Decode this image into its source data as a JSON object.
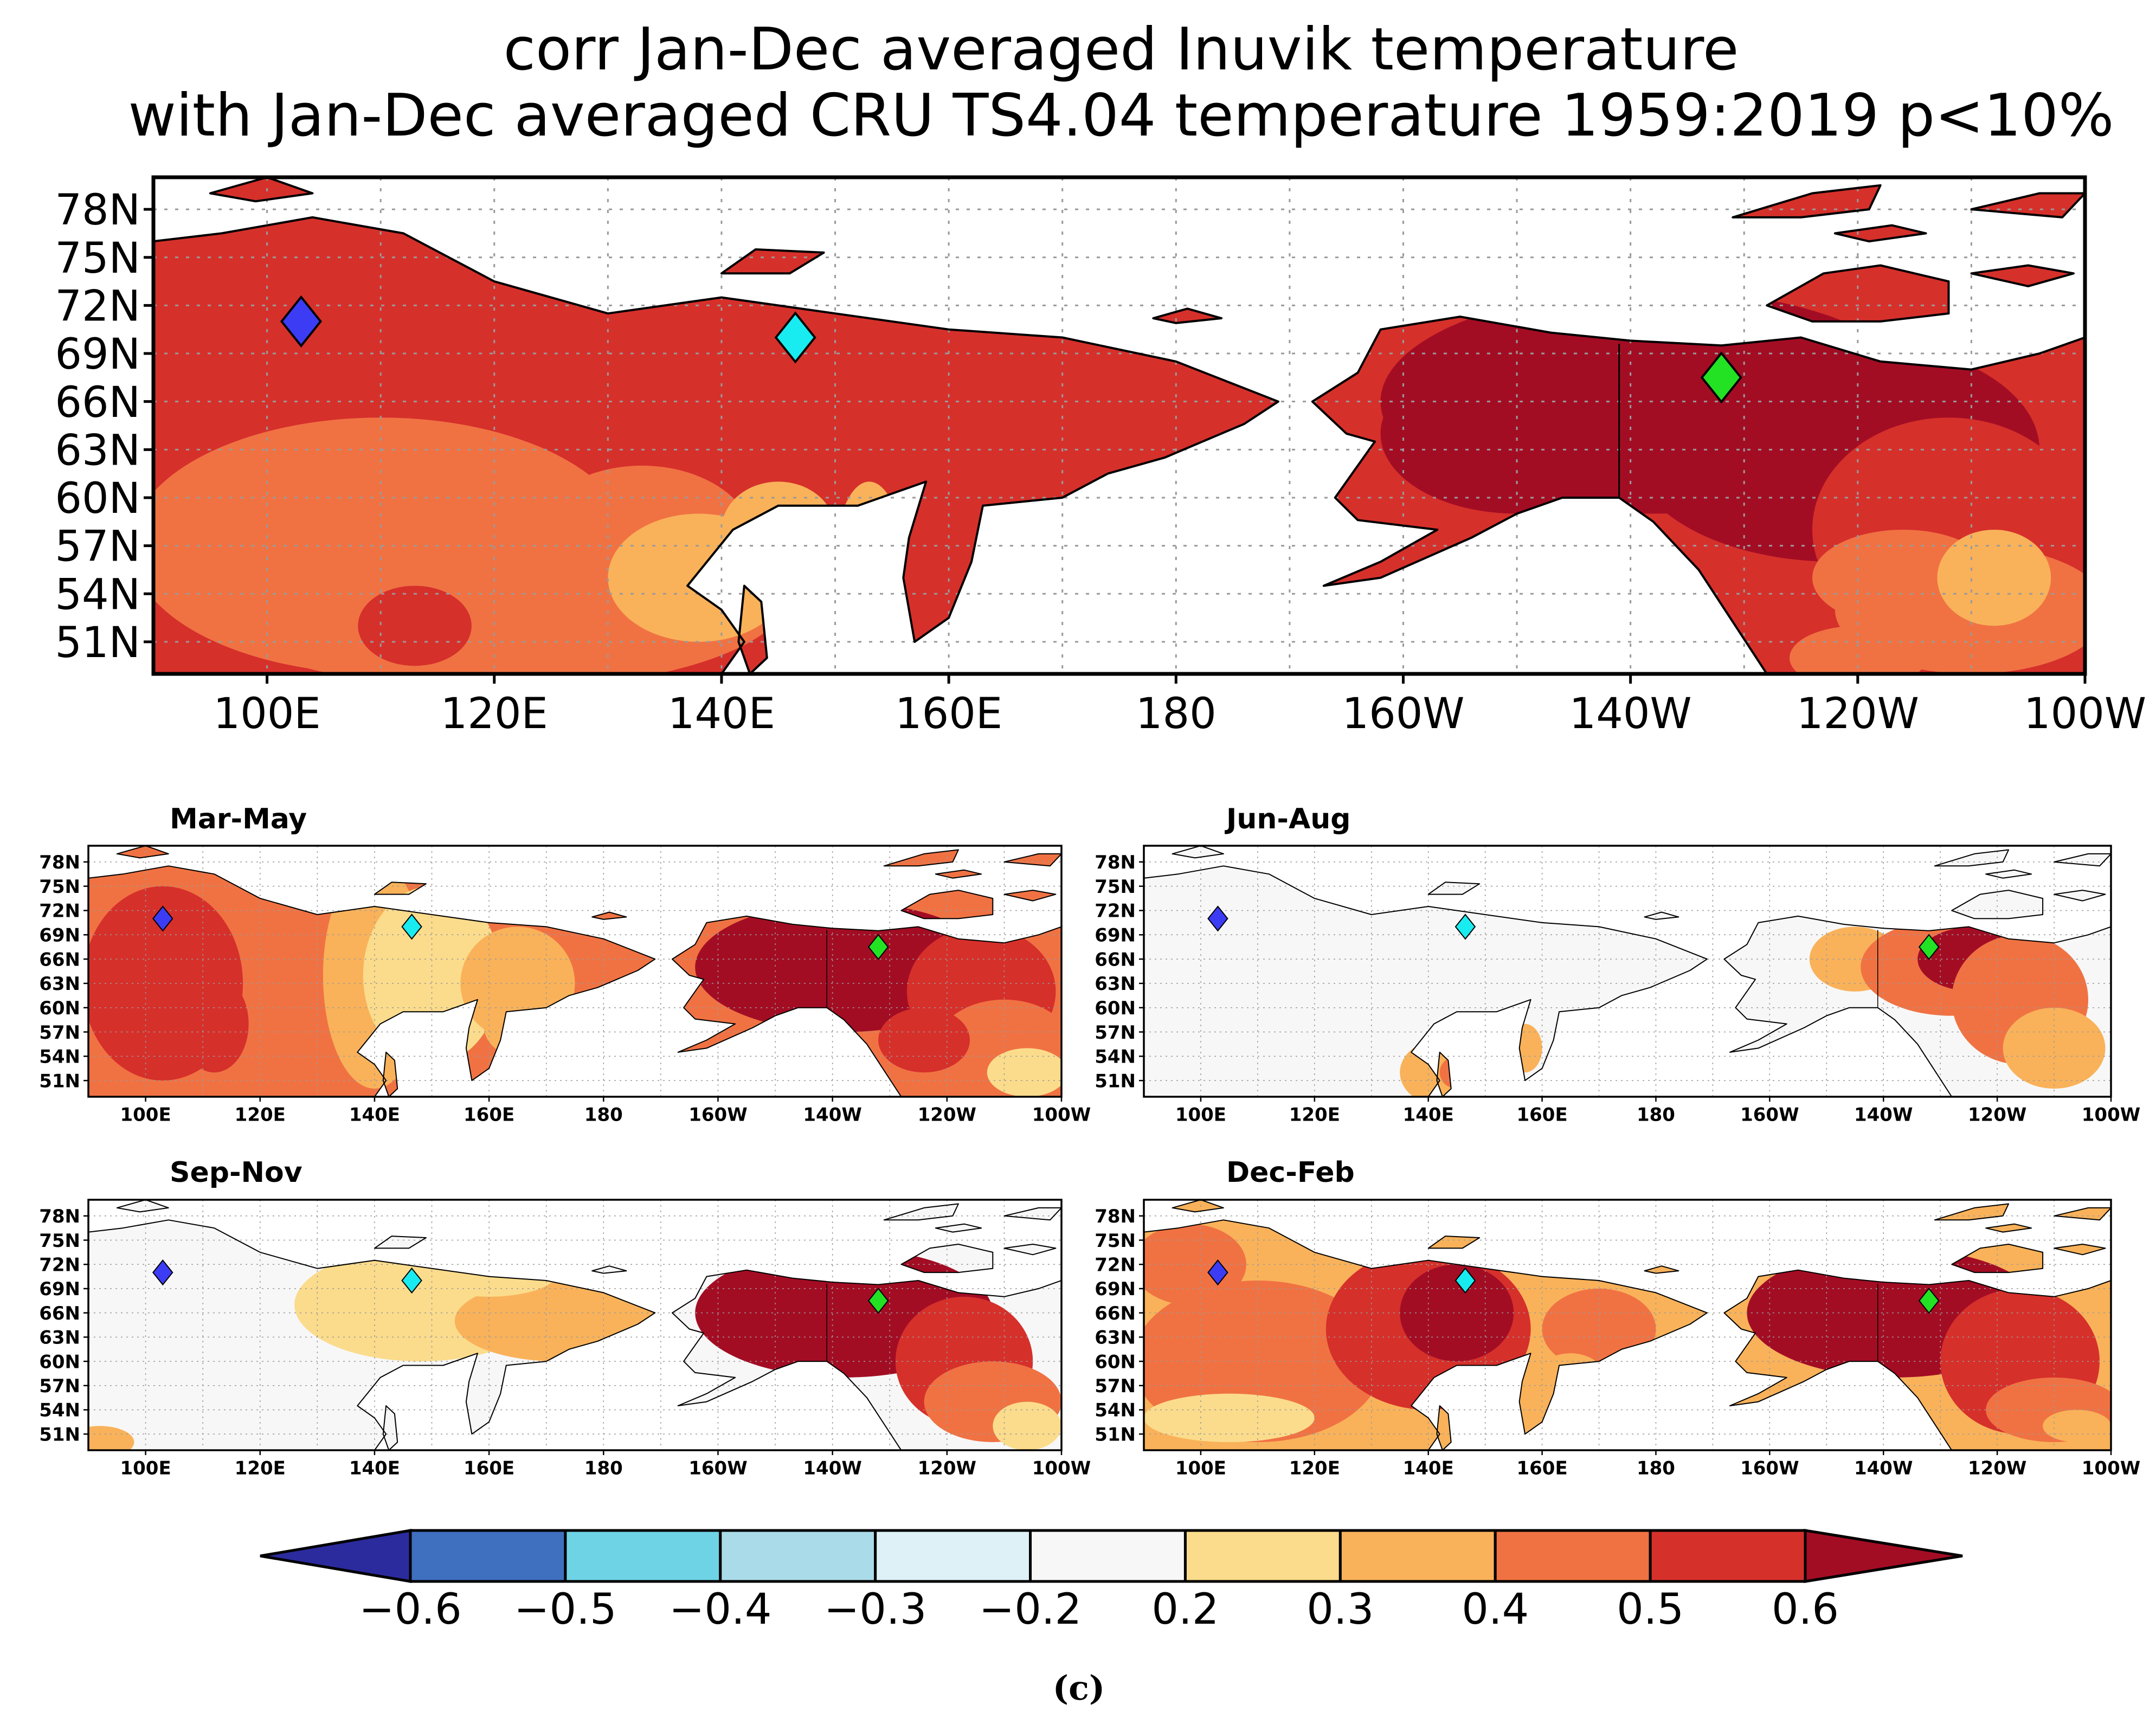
{
  "title": {
    "line1": "corr Jan-Dec averaged Inuvik temperature",
    "line2": "with Jan-Dec averaged CRU TS4.04 temperature 1959:2019 p<10%"
  },
  "subfigure_label": "(c)",
  "panels": {
    "main": {
      "title": ""
    },
    "mam": {
      "title": "Mar-May"
    },
    "jja": {
      "title": "Jun-Aug"
    },
    "son": {
      "title": "Sep-Nov"
    },
    "djf": {
      "title": "Dec-Feb"
    }
  },
  "lon_ticks": [
    "100E",
    "120E",
    "140E",
    "160E",
    "180",
    "160W",
    "140W",
    "120W",
    "100W"
  ],
  "lat_ticks": [
    "78N",
    "75N",
    "72N",
    "69N",
    "66N",
    "63N",
    "60N",
    "57N",
    "54N",
    "51N"
  ],
  "colorbar": {
    "tick_labels": [
      "-0.6",
      "-0.5",
      "-0.4",
      "-0.3",
      "-0.2",
      "0.2",
      "0.3",
      "0.4",
      "0.5",
      "0.6"
    ],
    "colors": [
      "#2b2b9e",
      "#3f6fbf",
      "#6fd3e6",
      "#aadbe8",
      "#ddf1f7",
      "#f7f7f7",
      "#fbdc8c",
      "#f9b25a",
      "#f07243",
      "#d6302b",
      "#a30d24"
    ]
  },
  "stations": [
    {
      "name": "blue",
      "color": "#3c3cf5"
    },
    {
      "name": "cyan",
      "color": "#19ecf0"
    },
    {
      "name": "green",
      "color": "#23e223"
    }
  ],
  "chart_data": {
    "type": "heatmap",
    "title": "corr Jan-Dec averaged Inuvik temperature with Jan-Dec averaged CRU TS4.04 temperature 1959:2019 p<10%",
    "x_range_deg_east": [
      90,
      260
    ],
    "y_range_deg_north": [
      49,
      80
    ],
    "contour_levels": [
      -0.6,
      -0.5,
      -0.4,
      -0.3,
      -0.2,
      0.2,
      0.3,
      0.4,
      0.5,
      0.6
    ],
    "station_markers_lon_lat": [
      {
        "name": "blue",
        "lon": 103,
        "lat": 71
      },
      {
        "name": "cyan",
        "lon": 146.5,
        "lat": 70
      },
      {
        "name": "green",
        "lon": 228,
        "lat": 67.5
      }
    ],
    "seasonal_panels": [
      "Mar-May",
      "Jun-Aug",
      "Sep-Nov",
      "Dec-Feb"
    ]
  }
}
